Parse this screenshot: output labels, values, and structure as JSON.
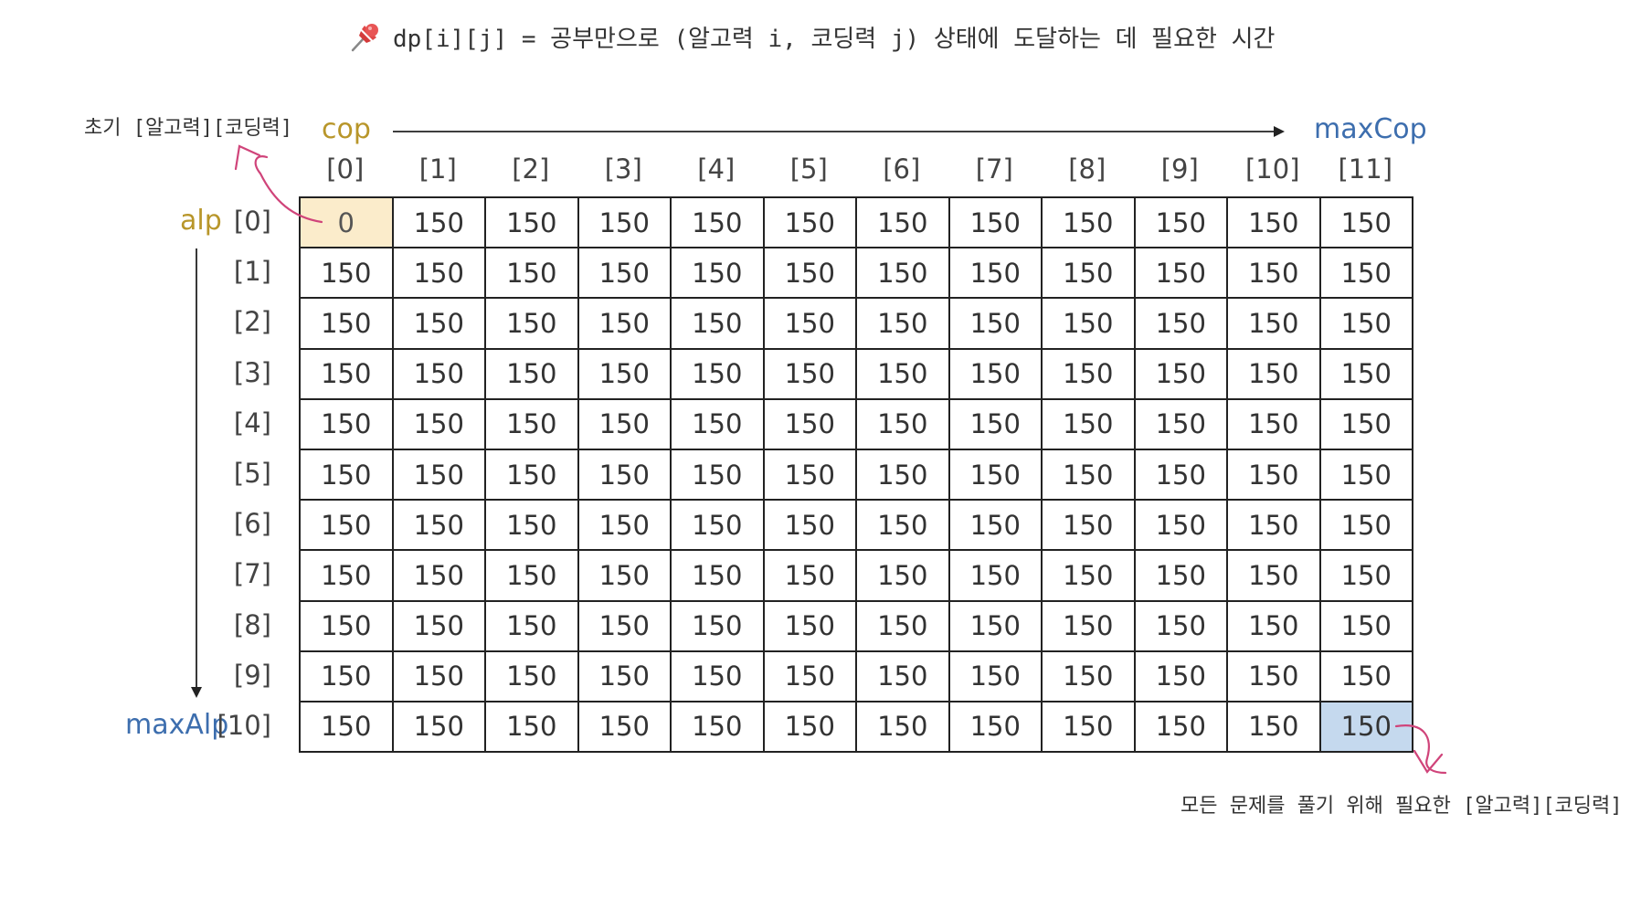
{
  "title": "dp[i][j] = 공부만으로 (알고력 i, 코딩력 j) 상태에 도달하는 데 필요한 시간",
  "notes": {
    "initial": "초기 [알고력][코딩력]",
    "goal": "모든 문제를 풀기 위해 필요한 [알고력][코딩력]"
  },
  "axes": {
    "col_label": "cop",
    "col_max_label": "maxCop",
    "row_label": "alp",
    "row_max_label": "maxAlp"
  },
  "columns": [
    "[0]",
    "[1]",
    "[2]",
    "[3]",
    "[4]",
    "[5]",
    "[6]",
    "[7]",
    "[8]",
    "[9]",
    "[10]",
    "[11]"
  ],
  "rows": [
    "[0]",
    "[1]",
    "[2]",
    "[3]",
    "[4]",
    "[5]",
    "[6]",
    "[7]",
    "[8]",
    "[9]",
    "[10]"
  ],
  "cells": [
    [
      "0",
      "150",
      "150",
      "150",
      "150",
      "150",
      "150",
      "150",
      "150",
      "150",
      "150",
      "150"
    ],
    [
      "150",
      "150",
      "150",
      "150",
      "150",
      "150",
      "150",
      "150",
      "150",
      "150",
      "150",
      "150"
    ],
    [
      "150",
      "150",
      "150",
      "150",
      "150",
      "150",
      "150",
      "150",
      "150",
      "150",
      "150",
      "150"
    ],
    [
      "150",
      "150",
      "150",
      "150",
      "150",
      "150",
      "150",
      "150",
      "150",
      "150",
      "150",
      "150"
    ],
    [
      "150",
      "150",
      "150",
      "150",
      "150",
      "150",
      "150",
      "150",
      "150",
      "150",
      "150",
      "150"
    ],
    [
      "150",
      "150",
      "150",
      "150",
      "150",
      "150",
      "150",
      "150",
      "150",
      "150",
      "150",
      "150"
    ],
    [
      "150",
      "150",
      "150",
      "150",
      "150",
      "150",
      "150",
      "150",
      "150",
      "150",
      "150",
      "150"
    ],
    [
      "150",
      "150",
      "150",
      "150",
      "150",
      "150",
      "150",
      "150",
      "150",
      "150",
      "150",
      "150"
    ],
    [
      "150",
      "150",
      "150",
      "150",
      "150",
      "150",
      "150",
      "150",
      "150",
      "150",
      "150",
      "150"
    ],
    [
      "150",
      "150",
      "150",
      "150",
      "150",
      "150",
      "150",
      "150",
      "150",
      "150",
      "150",
      "150"
    ],
    [
      "150",
      "150",
      "150",
      "150",
      "150",
      "150",
      "150",
      "150",
      "150",
      "150",
      "150",
      "150"
    ]
  ],
  "colors": {
    "start_cell": "#fbeccb",
    "end_cell": "#c5d9ee",
    "cop_alp_label": "#b8962a",
    "max_label": "#3d6eae",
    "annotation_arrow": "#d0447a"
  },
  "icons": {
    "title_icon": "pushpin-icon"
  }
}
